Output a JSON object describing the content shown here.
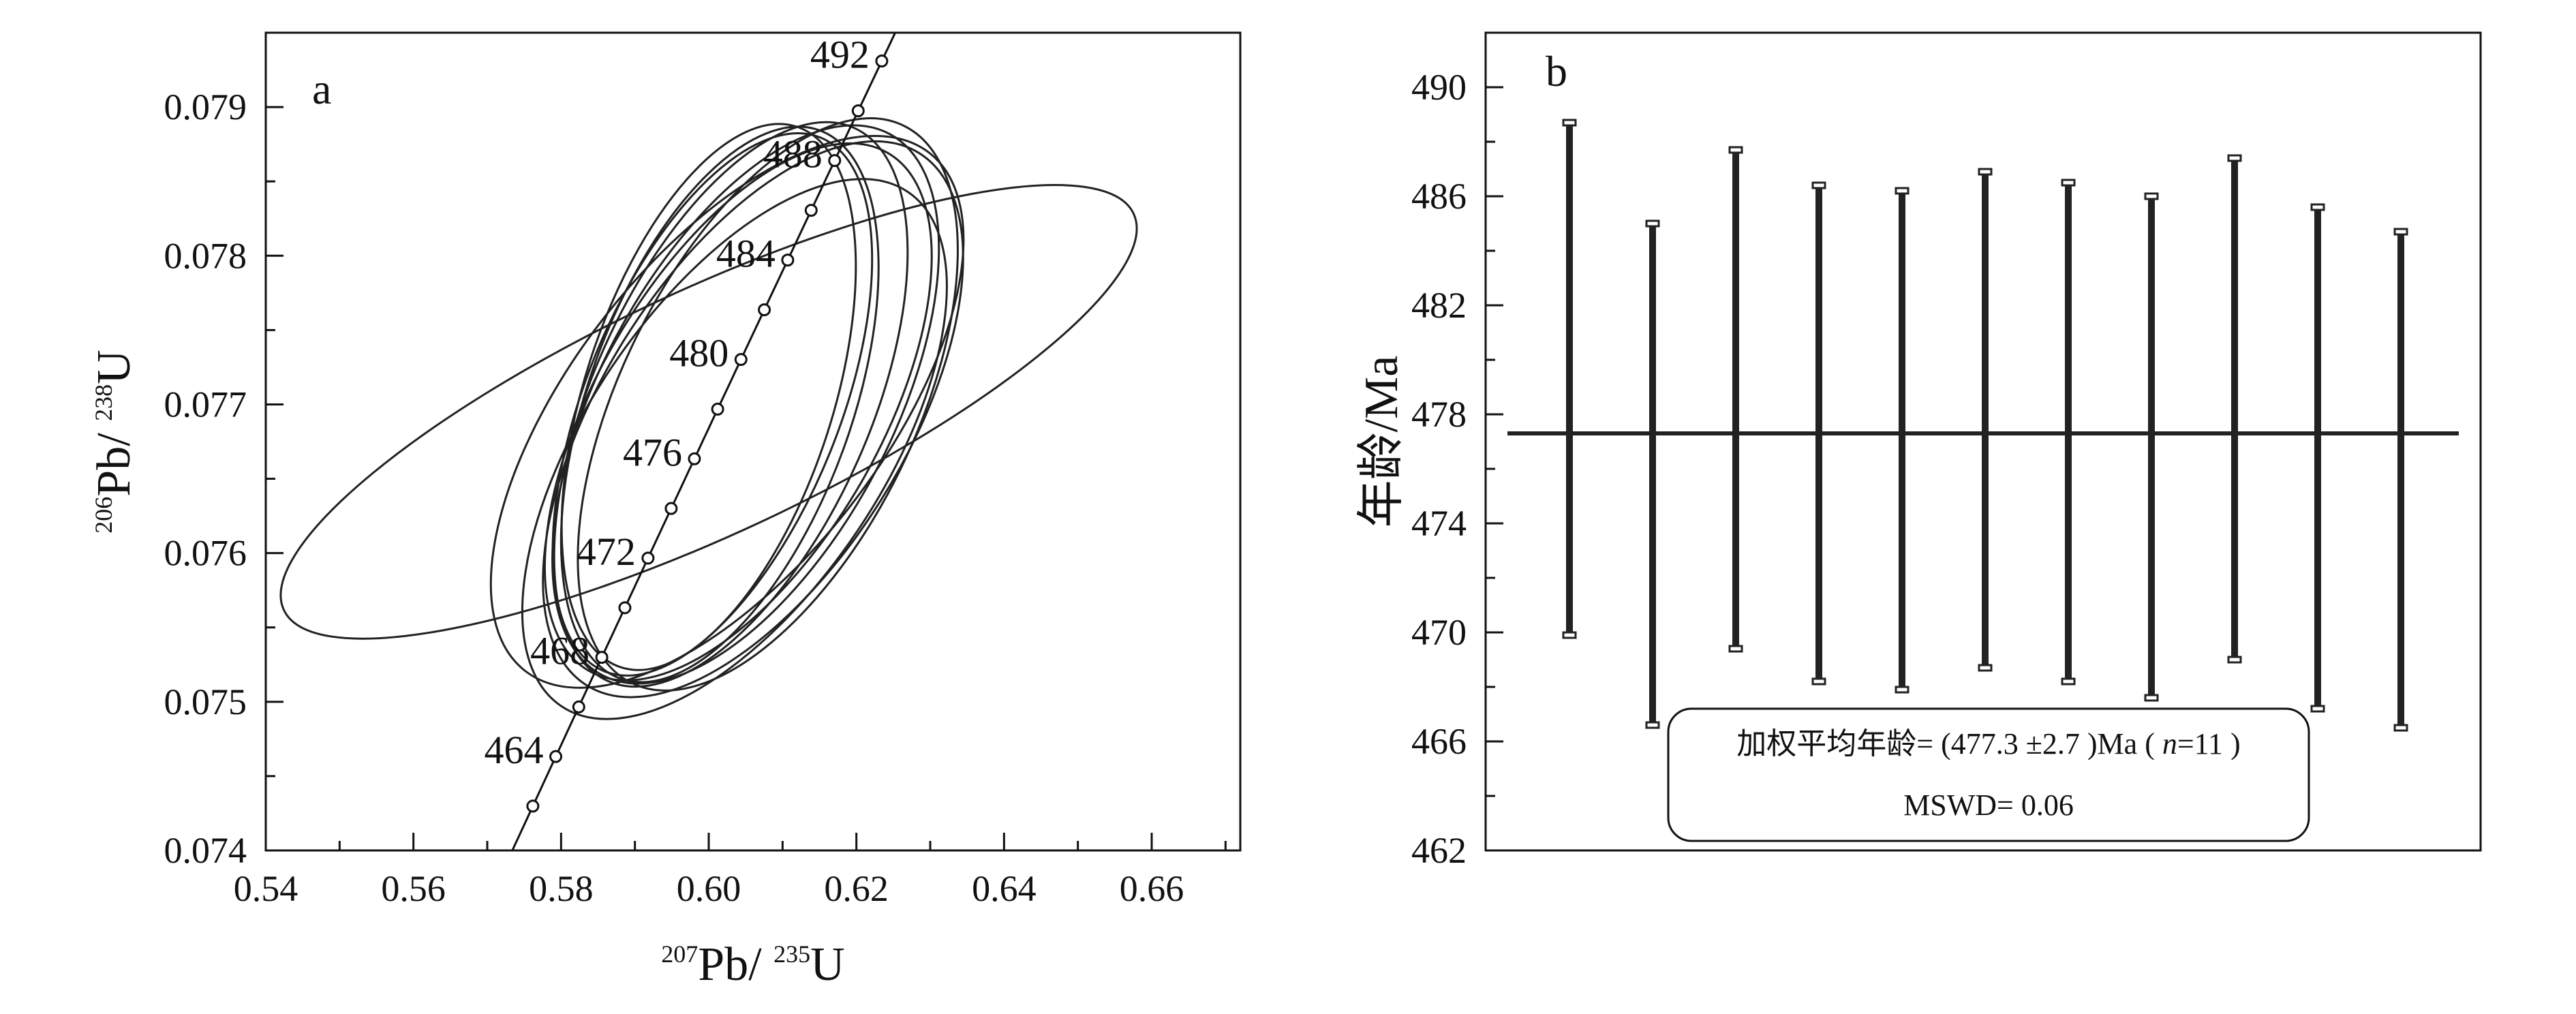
{
  "chart_data": [
    {
      "type": "scatter",
      "subtype": "concordia",
      "panel_label": "a",
      "xlabel": {
        "sup1": "207",
        "main1": "Pb/ ",
        "sup2": "235",
        "main2": "U"
      },
      "ylabel": {
        "sup1": "206",
        "main1": "Pb/ ",
        "sup2": "238",
        "main2": "U"
      },
      "xlim": [
        0.54,
        0.672
      ],
      "ylim": [
        0.074,
        0.0795
      ],
      "x_ticks": [
        "0.54",
        "0.56",
        "0.58",
        "0.60",
        "0.62",
        "0.64",
        "0.66"
      ],
      "y_ticks": [
        "0.074",
        "0.075",
        "0.076",
        "0.077",
        "0.078",
        "0.079"
      ],
      "concordia_age_labels": [
        "464",
        "468",
        "472",
        "476",
        "480",
        "484",
        "488",
        "492"
      ],
      "concordia_age_range": [
        460,
        494
      ],
      "concordia_marker_step": 2,
      "ellipses": [
        {
          "cx": 0.6,
          "cy": 0.07695,
          "rx": 0.0635,
          "ry": 0.0165,
          "angle": 25
        },
        {
          "cx": 0.6025,
          "cy": 0.07695,
          "rx": 0.0445,
          "ry": 0.021,
          "angle": 52
        },
        {
          "cx": 0.606,
          "cy": 0.0769,
          "rx": 0.0425,
          "ry": 0.0205,
          "angle": 58
        },
        {
          "cx": 0.6035,
          "cy": 0.0767,
          "rx": 0.042,
          "ry": 0.02,
          "angle": 56
        },
        {
          "cx": 0.605,
          "cy": 0.077,
          "rx": 0.0415,
          "ry": 0.0198,
          "angle": 62
        },
        {
          "cx": 0.603,
          "cy": 0.077,
          "rx": 0.041,
          "ry": 0.0188,
          "angle": 66
        },
        {
          "cx": 0.6015,
          "cy": 0.077,
          "rx": 0.0395,
          "ry": 0.0178,
          "angle": 70
        },
        {
          "cx": 0.6,
          "cy": 0.07705,
          "rx": 0.0385,
          "ry": 0.0168,
          "angle": 72
        },
        {
          "cx": 0.604,
          "cy": 0.07695,
          "rx": 0.0405,
          "ry": 0.0192,
          "angle": 60
        },
        {
          "cx": 0.6005,
          "cy": 0.077,
          "rx": 0.039,
          "ry": 0.0172,
          "angle": 68
        },
        {
          "cx": 0.608,
          "cy": 0.077,
          "rx": 0.042,
          "ry": 0.02,
          "angle": 64
        }
      ]
    },
    {
      "type": "errorbar",
      "panel_label": "b",
      "ylabel": "年龄/Ma",
      "ylim": [
        462,
        492
      ],
      "y_ticks": [
        "462",
        "466",
        "470",
        "474",
        "478",
        "482",
        "486",
        "490"
      ],
      "mean_age": 477.3,
      "bars": [
        {
          "low": 469.9,
          "high": 488.7
        },
        {
          "low": 466.6,
          "high": 485.0
        },
        {
          "low": 469.4,
          "high": 487.7
        },
        {
          "low": 468.2,
          "high": 486.4
        },
        {
          "low": 467.9,
          "high": 486.2
        },
        {
          "low": 468.7,
          "high": 486.9
        },
        {
          "low": 468.2,
          "high": 486.5
        },
        {
          "low": 467.6,
          "high": 486.0
        },
        {
          "low": 469.0,
          "high": 487.4
        },
        {
          "low": 467.2,
          "high": 485.6
        },
        {
          "low": 466.5,
          "high": 484.7
        }
      ],
      "annotation": {
        "line1_prefix": "加权平均年龄= (477.3 ±2.7 )Ma ( ",
        "line1_n": "n",
        "line1_suffix": "=11 )",
        "line2": "MSWD= 0.06"
      }
    }
  ]
}
